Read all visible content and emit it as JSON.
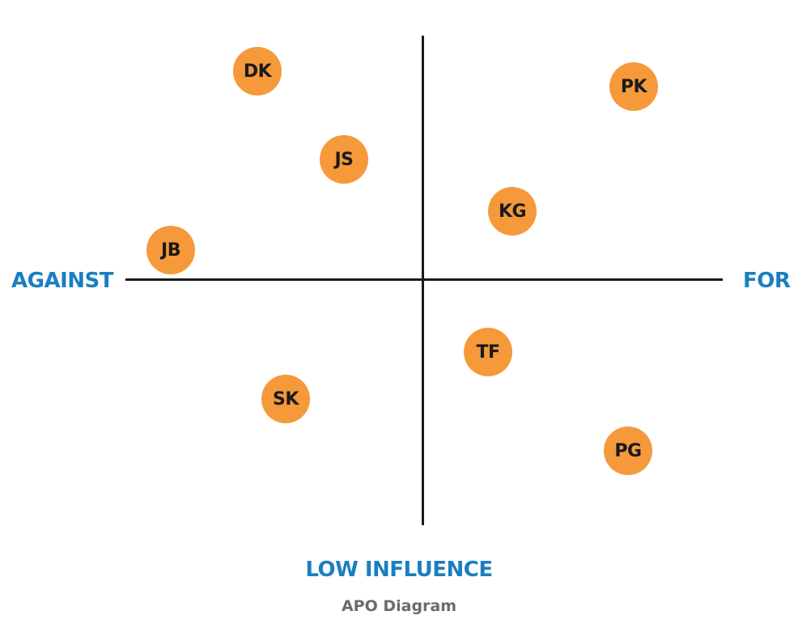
{
  "axes": {
    "left_label": "AGAINST",
    "right_label": "FOR",
    "bottom_label": "LOW INFLUENCE"
  },
  "caption": "APO Diagram",
  "colors": {
    "node_fill": "#f5993a",
    "axis_label": "#1a7fc1",
    "axis_line": "#1a1a1a",
    "caption": "#6b6b6b"
  },
  "nodes": [
    {
      "label": "DK"
    },
    {
      "label": "PK"
    },
    {
      "label": "JS"
    },
    {
      "label": "KG"
    },
    {
      "label": "JB"
    },
    {
      "label": "TF"
    },
    {
      "label": "SK"
    },
    {
      "label": "PG"
    }
  ]
}
